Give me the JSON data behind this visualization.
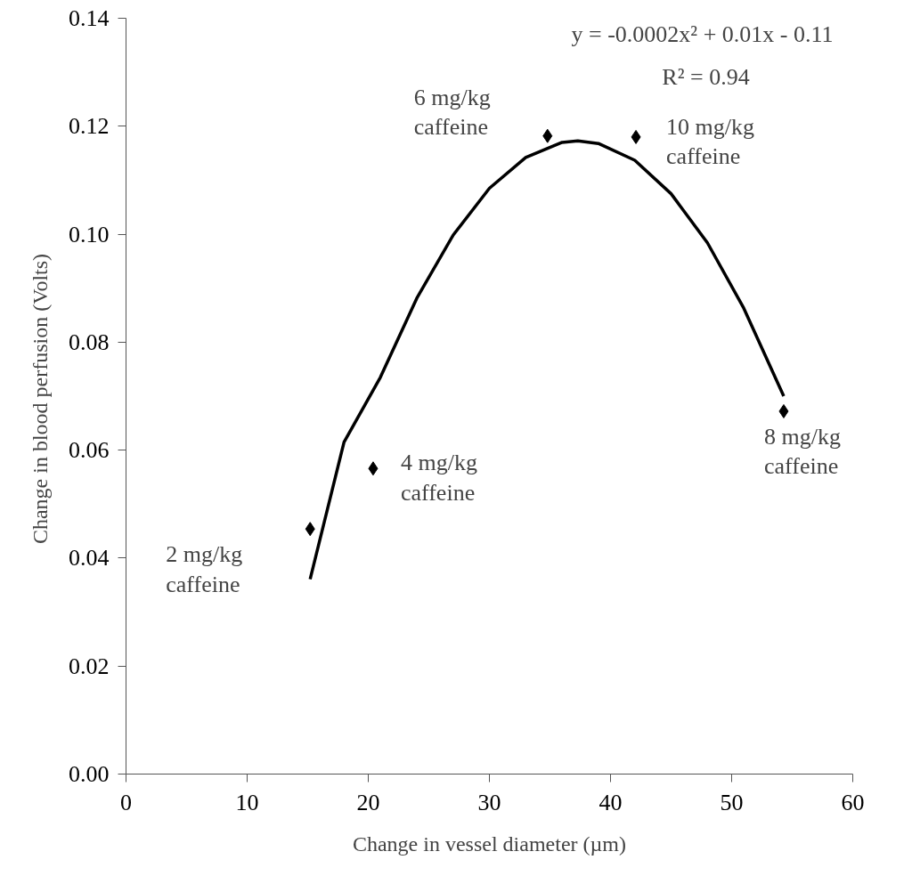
{
  "chart_data": {
    "type": "scatter",
    "xlabel": "Change in vessel diameter (µm)",
    "ylabel": "Change in blood  perfusion (Volts)",
    "xlim": [
      0,
      60
    ],
    "xticks": [
      0,
      10,
      20,
      30,
      40,
      50,
      60
    ],
    "ylim": [
      0,
      0.14
    ],
    "yticks": [
      {
        "value": 0,
        "label": "0.00"
      },
      {
        "value": 0.02,
        "label": "0.02"
      },
      {
        "value": 0.04,
        "label": "0.04"
      },
      {
        "value": 0.06,
        "label": "0.06"
      },
      {
        "value": 0.08,
        "label": "0.08"
      },
      {
        "value": 0.1,
        "label": "0.10"
      },
      {
        "value": 0.12,
        "label": "0.12"
      },
      {
        "value": 0.14,
        "label": "0.14"
      }
    ],
    "grid": false,
    "series": [
      {
        "marker": "diamond",
        "color": "#000000",
        "x": [
          15.2,
          20.4,
          34.8,
          42.1,
          54.3
        ],
        "values": [
          0.0454,
          0.0566,
          0.1182,
          0.118,
          0.0672
        ]
      },
      {
        "type": "line",
        "line_style": "solid",
        "color": "#000000",
        "x": [
          15.2,
          18,
          21,
          24,
          27,
          30,
          33,
          36,
          37.3,
          39,
          42,
          45,
          48,
          51,
          54.3
        ],
        "values": [
          0.0361,
          0.0615,
          0.0735,
          0.0881,
          0.0998,
          0.1085,
          0.1142,
          0.117,
          0.1173,
          0.1168,
          0.1137,
          0.1075,
          0.0984,
          0.0863,
          0.07
        ]
      }
    ],
    "annotations": [
      "y = -0.0002x² + 0.01x - 0.11",
      "R² = 0.94",
      {
        "text": "2 mg/kg\ncaffeine",
        "x": 15.2,
        "y": 0.0454
      },
      {
        "text": "4 mg/kg\ncaffeine",
        "x": 20.4,
        "y": 0.0566
      },
      {
        "text": "6 mg/kg\ncaffeine",
        "x": 34.8,
        "y": 0.1182
      },
      {
        "text": "10 mg/kg\ncaffeine",
        "x": 42.1,
        "y": 0.118
      },
      {
        "text": "8 mg/kg\ncaffeine",
        "x": 54.3,
        "y": 0.0672
      }
    ]
  }
}
